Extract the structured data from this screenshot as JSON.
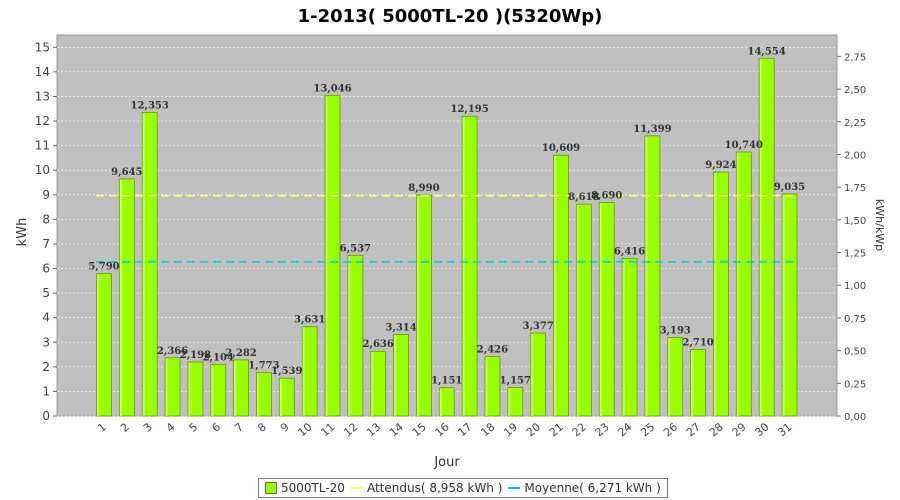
{
  "chart_data": {
    "type": "bar",
    "title": "1-2013( 5000TL-20 )(5320Wp)",
    "xlabel": "Jour",
    "ylabel": "kWh",
    "y2label": "kWh/kWp",
    "ylim": [
      0,
      15.5
    ],
    "y2lim": [
      0,
      2.9135
    ],
    "yticks": [
      "0",
      "1",
      "2",
      "3",
      "4",
      "5",
      "6",
      "7",
      "8",
      "9",
      "10",
      "11",
      "12",
      "13",
      "14",
      "15"
    ],
    "y2ticks": [
      "0,00",
      "0,25",
      "0,50",
      "0,75",
      "1,00",
      "1,25",
      "1,50",
      "1,75",
      "2,00",
      "2,25",
      "2,50",
      "2,75"
    ],
    "categories": [
      "1",
      "2",
      "3",
      "4",
      "5",
      "6",
      "7",
      "8",
      "9",
      "10",
      "11",
      "12",
      "13",
      "14",
      "15",
      "16",
      "17",
      "18",
      "19",
      "20",
      "21",
      "22",
      "23",
      "24",
      "25",
      "26",
      "27",
      "28",
      "29",
      "30",
      "31"
    ],
    "values": [
      5.79,
      9.645,
      12.353,
      2.366,
      2.198,
      2.104,
      2.282,
      1.773,
      1.539,
      3.631,
      13.046,
      6.537,
      2.636,
      3.314,
      8.99,
      1.151,
      12.195,
      2.426,
      1.157,
      3.377,
      10.609,
      8.618,
      8.69,
      6.416,
      11.399,
      3.193,
      2.71,
      9.924,
      10.74,
      14.554,
      9.035
    ],
    "value_labels": [
      "5,790",
      "9,645",
      "12,353",
      "2,366",
      "2,198",
      "2,104",
      "2,282",
      "1,773",
      "1,539",
      "3,631",
      "13,046",
      "6,537",
      "2,636",
      "3,314",
      "8,990",
      "1,151",
      "12,195",
      "2,426",
      "1,157",
      "3,377",
      "10,609",
      "8,618",
      "8,690",
      "6,416",
      "11,399",
      "3,193",
      "2,710",
      "9,924",
      "10,740",
      "14,554",
      "9,035"
    ],
    "reference_lines": [
      {
        "name": "Attendus( 8,958 kWh )",
        "value": 8.958,
        "color": "#ffff66",
        "style": "dashed"
      },
      {
        "name": "Moyenne( 6,271 kWh )",
        "value": 6.271,
        "color": "#00cccc",
        "style": "dashed"
      }
    ],
    "series_name": "5000TL-20",
    "colors": {
      "bar": "#99ff00",
      "bar_edge": "#669900",
      "plot_bg": "#c0c0c0",
      "grid": "#ffffff"
    },
    "grid": true,
    "legend_position": "bottom"
  }
}
